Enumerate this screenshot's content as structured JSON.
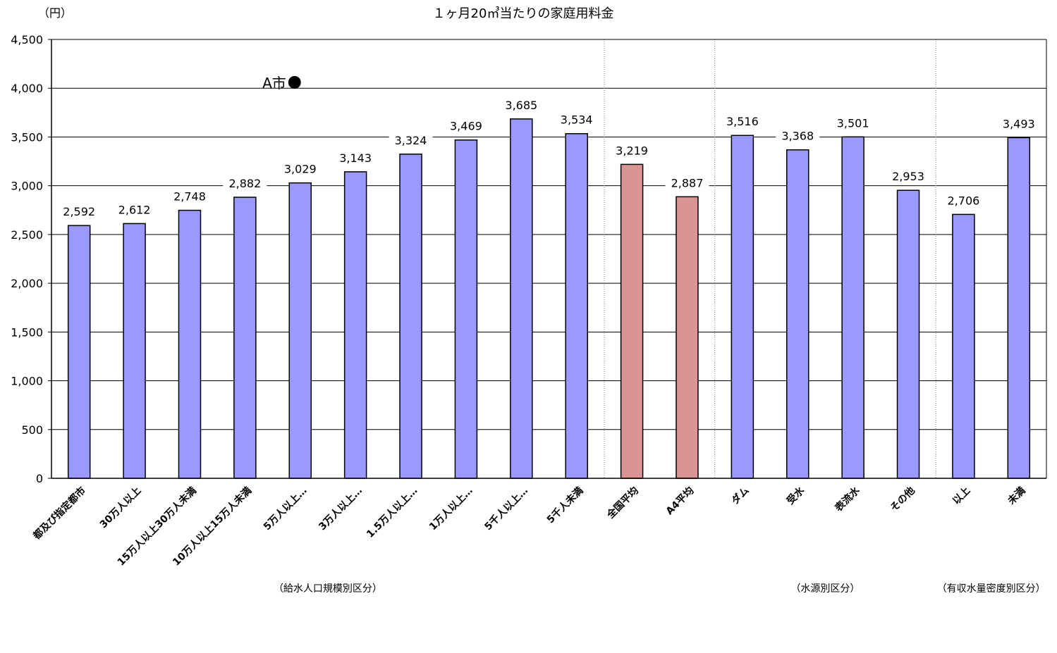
{
  "chart_data": {
    "type": "bar",
    "title": "１ヶ月20㎥当たりの家庭用料金",
    "ylabel": "（円）",
    "ylim": [
      0,
      4500
    ],
    "yticks": [
      0,
      500,
      1000,
      1500,
      2000,
      2500,
      3000,
      3500,
      4000,
      4500
    ],
    "ytick_labels": [
      "0",
      "500",
      "1,000",
      "1,500",
      "2,000",
      "2,500",
      "3,000",
      "3,500",
      "4,000",
      "4,500"
    ],
    "grid": true,
    "categories": [
      "都及び指定都市",
      "30万人以上",
      "15万人以上30万人未満",
      "10万人以上15万人未満",
      "5万人以上…",
      "3万人以上…",
      "1.5万人以上…",
      "1万人以上…",
      "5千人以上…",
      "5千人未満",
      "全国平均",
      "A4平均",
      "ダム",
      "受水",
      "表流水",
      "その他",
      "以上",
      "未満"
    ],
    "values": [
      2592,
      2612,
      2748,
      2882,
      3029,
      3143,
      3324,
      3469,
      3685,
      3534,
      3219,
      2887,
      3516,
      3368,
      3501,
      2953,
      2706,
      3493
    ],
    "value_labels": [
      "2,592",
      "2,612",
      "2,748",
      "2,882",
      "3,029",
      "3,143",
      "3,324",
      "3,469",
      "3,685",
      "3,534",
      "3,219",
      "2,887",
      "3,516",
      "3,368",
      "3,501",
      "2,953",
      "2,706",
      "3,493"
    ],
    "bar_colors": [
      "#9999ff",
      "#9999ff",
      "#9999ff",
      "#9999ff",
      "#9999ff",
      "#9999ff",
      "#9999ff",
      "#9999ff",
      "#9999ff",
      "#9999ff",
      "#d99594",
      "#d99594",
      "#9999ff",
      "#9999ff",
      "#9999ff",
      "#9999ff",
      "#9999ff",
      "#9999ff"
    ],
    "groups": [
      {
        "label": "（給水人口規模別区分）",
        "from": 0,
        "to": 9
      },
      {
        "label": "（水源別区分）",
        "from": 12,
        "to": 15
      },
      {
        "label": "（有収水量密度別区分）",
        "from": 16,
        "to": 17
      }
    ],
    "marker": {
      "label": "A市",
      "symbol": "●",
      "value": 4060,
      "category_index": 4
    }
  }
}
